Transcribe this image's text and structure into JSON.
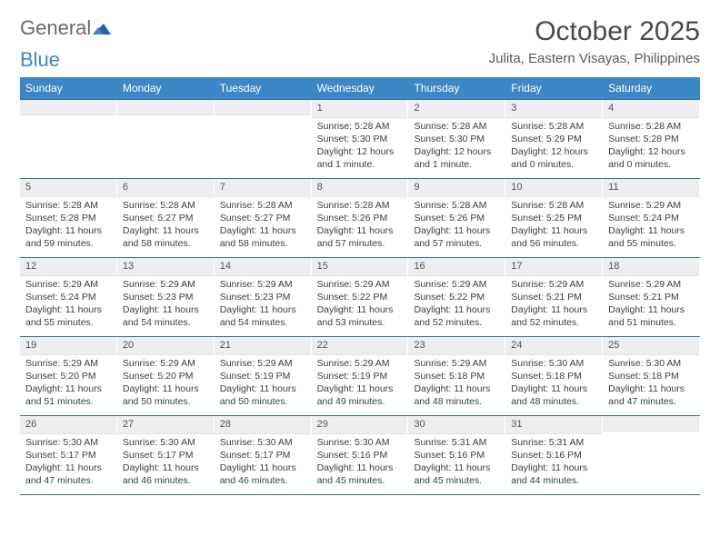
{
  "brand": {
    "word1": "General",
    "word2": "Blue"
  },
  "title": "October 2025",
  "location": "Julita, Eastern Visayas, Philippines",
  "colors": {
    "header_bg": "#3c88c6",
    "header_text": "#ffffff",
    "rule": "#2f6ea8",
    "daynum_bg": "#eeeeee",
    "text": "#3d3d3d"
  },
  "day_names": [
    "Sunday",
    "Monday",
    "Tuesday",
    "Wednesday",
    "Thursday",
    "Friday",
    "Saturday"
  ],
  "weeks": [
    [
      {
        "day": "",
        "sunrise": "",
        "sunset": "",
        "daylight": ""
      },
      {
        "day": "",
        "sunrise": "",
        "sunset": "",
        "daylight": ""
      },
      {
        "day": "",
        "sunrise": "",
        "sunset": "",
        "daylight": ""
      },
      {
        "day": "1",
        "sunrise": "Sunrise: 5:28 AM",
        "sunset": "Sunset: 5:30 PM",
        "daylight": "Daylight: 12 hours and 1 minute."
      },
      {
        "day": "2",
        "sunrise": "Sunrise: 5:28 AM",
        "sunset": "Sunset: 5:30 PM",
        "daylight": "Daylight: 12 hours and 1 minute."
      },
      {
        "day": "3",
        "sunrise": "Sunrise: 5:28 AM",
        "sunset": "Sunset: 5:29 PM",
        "daylight": "Daylight: 12 hours and 0 minutes."
      },
      {
        "day": "4",
        "sunrise": "Sunrise: 5:28 AM",
        "sunset": "Sunset: 5:28 PM",
        "daylight": "Daylight: 12 hours and 0 minutes."
      }
    ],
    [
      {
        "day": "5",
        "sunrise": "Sunrise: 5:28 AM",
        "sunset": "Sunset: 5:28 PM",
        "daylight": "Daylight: 11 hours and 59 minutes."
      },
      {
        "day": "6",
        "sunrise": "Sunrise: 5:28 AM",
        "sunset": "Sunset: 5:27 PM",
        "daylight": "Daylight: 11 hours and 58 minutes."
      },
      {
        "day": "7",
        "sunrise": "Sunrise: 5:28 AM",
        "sunset": "Sunset: 5:27 PM",
        "daylight": "Daylight: 11 hours and 58 minutes."
      },
      {
        "day": "8",
        "sunrise": "Sunrise: 5:28 AM",
        "sunset": "Sunset: 5:26 PM",
        "daylight": "Daylight: 11 hours and 57 minutes."
      },
      {
        "day": "9",
        "sunrise": "Sunrise: 5:28 AM",
        "sunset": "Sunset: 5:26 PM",
        "daylight": "Daylight: 11 hours and 57 minutes."
      },
      {
        "day": "10",
        "sunrise": "Sunrise: 5:28 AM",
        "sunset": "Sunset: 5:25 PM",
        "daylight": "Daylight: 11 hours and 56 minutes."
      },
      {
        "day": "11",
        "sunrise": "Sunrise: 5:29 AM",
        "sunset": "Sunset: 5:24 PM",
        "daylight": "Daylight: 11 hours and 55 minutes."
      }
    ],
    [
      {
        "day": "12",
        "sunrise": "Sunrise: 5:29 AM",
        "sunset": "Sunset: 5:24 PM",
        "daylight": "Daylight: 11 hours and 55 minutes."
      },
      {
        "day": "13",
        "sunrise": "Sunrise: 5:29 AM",
        "sunset": "Sunset: 5:23 PM",
        "daylight": "Daylight: 11 hours and 54 minutes."
      },
      {
        "day": "14",
        "sunrise": "Sunrise: 5:29 AM",
        "sunset": "Sunset: 5:23 PM",
        "daylight": "Daylight: 11 hours and 54 minutes."
      },
      {
        "day": "15",
        "sunrise": "Sunrise: 5:29 AM",
        "sunset": "Sunset: 5:22 PM",
        "daylight": "Daylight: 11 hours and 53 minutes."
      },
      {
        "day": "16",
        "sunrise": "Sunrise: 5:29 AM",
        "sunset": "Sunset: 5:22 PM",
        "daylight": "Daylight: 11 hours and 52 minutes."
      },
      {
        "day": "17",
        "sunrise": "Sunrise: 5:29 AM",
        "sunset": "Sunset: 5:21 PM",
        "daylight": "Daylight: 11 hours and 52 minutes."
      },
      {
        "day": "18",
        "sunrise": "Sunrise: 5:29 AM",
        "sunset": "Sunset: 5:21 PM",
        "daylight": "Daylight: 11 hours and 51 minutes."
      }
    ],
    [
      {
        "day": "19",
        "sunrise": "Sunrise: 5:29 AM",
        "sunset": "Sunset: 5:20 PM",
        "daylight": "Daylight: 11 hours and 51 minutes."
      },
      {
        "day": "20",
        "sunrise": "Sunrise: 5:29 AM",
        "sunset": "Sunset: 5:20 PM",
        "daylight": "Daylight: 11 hours and 50 minutes."
      },
      {
        "day": "21",
        "sunrise": "Sunrise: 5:29 AM",
        "sunset": "Sunset: 5:19 PM",
        "daylight": "Daylight: 11 hours and 50 minutes."
      },
      {
        "day": "22",
        "sunrise": "Sunrise: 5:29 AM",
        "sunset": "Sunset: 5:19 PM",
        "daylight": "Daylight: 11 hours and 49 minutes."
      },
      {
        "day": "23",
        "sunrise": "Sunrise: 5:29 AM",
        "sunset": "Sunset: 5:18 PM",
        "daylight": "Daylight: 11 hours and 48 minutes."
      },
      {
        "day": "24",
        "sunrise": "Sunrise: 5:30 AM",
        "sunset": "Sunset: 5:18 PM",
        "daylight": "Daylight: 11 hours and 48 minutes."
      },
      {
        "day": "25",
        "sunrise": "Sunrise: 5:30 AM",
        "sunset": "Sunset: 5:18 PM",
        "daylight": "Daylight: 11 hours and 47 minutes."
      }
    ],
    [
      {
        "day": "26",
        "sunrise": "Sunrise: 5:30 AM",
        "sunset": "Sunset: 5:17 PM",
        "daylight": "Daylight: 11 hours and 47 minutes."
      },
      {
        "day": "27",
        "sunrise": "Sunrise: 5:30 AM",
        "sunset": "Sunset: 5:17 PM",
        "daylight": "Daylight: 11 hours and 46 minutes."
      },
      {
        "day": "28",
        "sunrise": "Sunrise: 5:30 AM",
        "sunset": "Sunset: 5:17 PM",
        "daylight": "Daylight: 11 hours and 46 minutes."
      },
      {
        "day": "29",
        "sunrise": "Sunrise: 5:30 AM",
        "sunset": "Sunset: 5:16 PM",
        "daylight": "Daylight: 11 hours and 45 minutes."
      },
      {
        "day": "30",
        "sunrise": "Sunrise: 5:31 AM",
        "sunset": "Sunset: 5:16 PM",
        "daylight": "Daylight: 11 hours and 45 minutes."
      },
      {
        "day": "31",
        "sunrise": "Sunrise: 5:31 AM",
        "sunset": "Sunset: 5:16 PM",
        "daylight": "Daylight: 11 hours and 44 minutes."
      },
      {
        "day": "",
        "sunrise": "",
        "sunset": "",
        "daylight": ""
      }
    ]
  ]
}
